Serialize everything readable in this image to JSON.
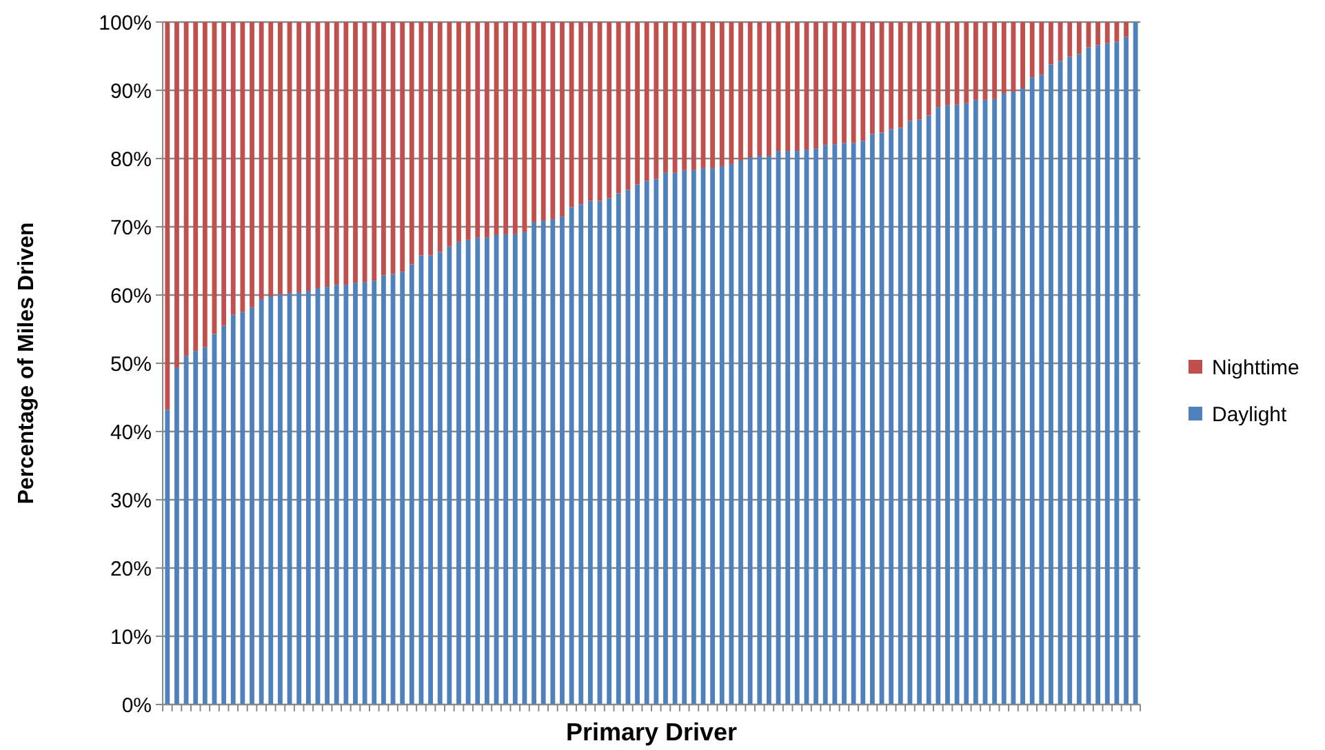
{
  "chart_data": {
    "type": "bar",
    "stacked": true,
    "xlabel": "Primary Driver",
    "ylabel": "Percentage of Miles Driven",
    "categories": [
      null,
      null,
      null,
      null,
      null,
      null,
      null,
      null,
      null,
      null,
      null,
      null,
      null,
      null,
      null,
      null,
      null,
      null,
      null,
      null,
      null,
      null,
      null,
      null,
      null,
      null,
      null,
      null,
      null,
      null,
      null,
      null,
      null,
      null,
      null,
      null,
      null,
      null,
      null,
      null,
      null,
      null,
      null,
      null,
      null,
      null,
      null,
      null,
      null,
      null,
      null,
      null,
      null,
      null,
      null,
      null,
      null,
      null,
      null,
      null,
      null,
      null,
      null,
      null,
      null,
      null,
      null,
      null,
      null,
      null,
      null,
      null,
      null,
      null,
      null,
      null,
      null,
      null,
      null,
      null,
      null,
      null,
      null,
      null,
      null,
      null,
      null,
      null,
      null,
      null,
      null,
      null,
      null,
      null,
      null,
      null,
      null,
      null,
      null,
      null,
      null,
      null,
      null,
      null
    ],
    "series": [
      {
        "name": "Daylight",
        "color": "#4f81bd",
        "values": [
          43.2,
          49.4,
          51.1,
          51.8,
          52.4,
          54.3,
          55.5,
          57.1,
          57.5,
          58.2,
          59.4,
          59.8,
          60.1,
          60.3,
          60.4,
          60.6,
          61.0,
          61.2,
          61.5,
          61.5,
          61.8,
          61.9,
          62.1,
          62.9,
          63.1,
          63.4,
          64.5,
          65.8,
          65.8,
          66.3,
          67.1,
          67.8,
          68.1,
          68.4,
          68.4,
          68.8,
          68.9,
          68.9,
          69.2,
          70.7,
          70.9,
          71.1,
          71.5,
          72.9,
          73.3,
          73.8,
          73.8,
          74.2,
          74.9,
          75.4,
          76.2,
          76.7,
          77.0,
          77.9,
          77.9,
          78.3,
          78.3,
          78.6,
          78.6,
          78.9,
          79.2,
          79.7,
          80.1,
          80.4,
          80.4,
          81.1,
          81.1,
          81.1,
          81.3,
          81.5,
          82.0,
          82.1,
          82.3,
          82.3,
          82.6,
          83.6,
          83.8,
          84.3,
          84.5,
          85.5,
          85.7,
          86.3,
          87.5,
          87.8,
          87.9,
          88.1,
          88.6,
          88.6,
          88.7,
          89.5,
          89.8,
          90.3,
          91.9,
          92.3,
          93.8,
          94.3,
          94.9,
          95.3,
          96.3,
          96.6,
          96.9,
          97.1,
          97.8,
          100
        ]
      },
      {
        "name": "Nighttime",
        "color": "#c0504d",
        "values": [
          56.8,
          50.6,
          48.9,
          48.2,
          47.6,
          45.7,
          44.5,
          42.9,
          42.5,
          41.8,
          40.6,
          40.2,
          39.9,
          39.7,
          39.6,
          39.4,
          39.0,
          38.8,
          38.5,
          38.5,
          38.2,
          38.1,
          37.9,
          37.1,
          36.9,
          36.6,
          35.5,
          34.2,
          34.2,
          33.7,
          32.9,
          32.2,
          31.9,
          31.6,
          31.6,
          31.2,
          31.1,
          31.1,
          30.8,
          29.3,
          29.1,
          28.9,
          28.5,
          27.1,
          26.7,
          26.2,
          26.2,
          25.8,
          25.1,
          24.6,
          23.8,
          23.3,
          23.0,
          22.1,
          22.1,
          21.7,
          21.7,
          21.4,
          21.4,
          21.1,
          20.8,
          20.3,
          19.9,
          19.6,
          19.6,
          18.9,
          18.9,
          18.9,
          18.7,
          18.5,
          18.0,
          17.9,
          17.7,
          17.7,
          17.4,
          16.4,
          16.2,
          15.7,
          15.5,
          14.5,
          14.3,
          13.7,
          12.5,
          12.2,
          12.1,
          11.9,
          11.4,
          11.4,
          11.3,
          10.5,
          10.2,
          9.7,
          8.1,
          7.7,
          6.2,
          5.7,
          5.1,
          4.7,
          3.7,
          3.4,
          3.1,
          2.9,
          2.2,
          0
        ]
      }
    ],
    "ylim": [
      0,
      100
    ],
    "yticks": [
      {
        "value": 0,
        "label": "0%"
      },
      {
        "value": 10,
        "label": "10%"
      },
      {
        "value": 20,
        "label": "20%"
      },
      {
        "value": 30,
        "label": "30%"
      },
      {
        "value": 40,
        "label": "40%"
      },
      {
        "value": 50,
        "label": "50%"
      },
      {
        "value": 60,
        "label": "60%"
      },
      {
        "value": 70,
        "label": "70%"
      },
      {
        "value": 80,
        "label": "80%"
      },
      {
        "value": 90,
        "label": "90%"
      },
      {
        "value": 100,
        "label": "100%"
      }
    ],
    "grid": "y",
    "legend": "right"
  }
}
